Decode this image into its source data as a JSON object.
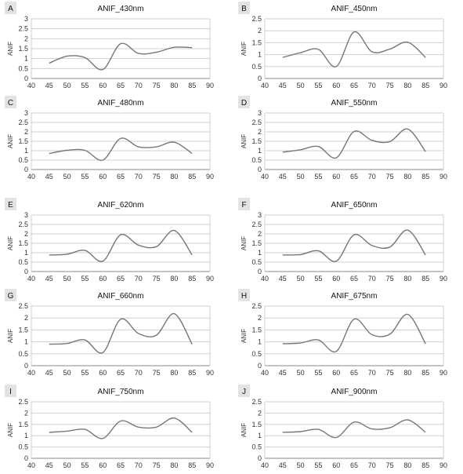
{
  "chart_data": [
    {
      "type": "line",
      "panel": "A",
      "title": "ANIF_430nm",
      "ylabel": "ANIF",
      "x": [
        45,
        50,
        55,
        60,
        65,
        70,
        75,
        80,
        85
      ],
      "values": [
        0.77,
        1.12,
        1.05,
        0.45,
        1.75,
        1.26,
        1.32,
        1.57,
        1.55
      ],
      "xlim": [
        40,
        90
      ],
      "ylim": [
        0,
        3
      ],
      "xticks": [
        "40",
        "45",
        "50",
        "55",
        "60",
        "65",
        "70",
        "75",
        "80",
        "85",
        "90"
      ],
      "yticks": [
        "0",
        "0.5",
        "1",
        "1.5",
        "2",
        "2.5",
        "3"
      ],
      "grid": true,
      "color": "#777777"
    },
    {
      "type": "line",
      "panel": "B",
      "title": "ANIF_450nm",
      "ylabel": "ANIF",
      "x": [
        45,
        50,
        55,
        60,
        65,
        70,
        75,
        80,
        85
      ],
      "values": [
        0.88,
        1.08,
        1.22,
        0.5,
        1.95,
        1.12,
        1.23,
        1.52,
        0.88
      ],
      "xlim": [
        40,
        90
      ],
      "ylim": [
        0,
        2.5
      ],
      "xticks": [
        "40",
        "45",
        "50",
        "55",
        "60",
        "65",
        "70",
        "75",
        "80",
        "85",
        "90"
      ],
      "yticks": [
        "0",
        "0.5",
        "1",
        "1.5",
        "2",
        "2.5"
      ],
      "grid": true,
      "color": "#777777"
    },
    {
      "type": "line",
      "panel": "C",
      "title": "ANIF_480nm",
      "ylabel": "ANIF",
      "x": [
        45,
        50,
        55,
        60,
        65,
        70,
        75,
        80,
        85
      ],
      "values": [
        0.85,
        1.02,
        1.02,
        0.5,
        1.65,
        1.2,
        1.2,
        1.45,
        0.85
      ],
      "xlim": [
        40,
        90
      ],
      "ylim": [
        0,
        3
      ],
      "xticks": [
        "40",
        "45",
        "50",
        "55",
        "60",
        "65",
        "70",
        "75",
        "80",
        "85",
        "90"
      ],
      "yticks": [
        "0",
        "0.5",
        "1",
        "1.5",
        "2",
        "2.5",
        "3"
      ],
      "grid": true,
      "color": "#777777"
    },
    {
      "type": "line",
      "panel": "D",
      "title": "ANIF_550nm",
      "ylabel": "ANIF",
      "x": [
        45,
        50,
        55,
        60,
        65,
        70,
        75,
        80,
        85
      ],
      "values": [
        0.92,
        1.05,
        1.22,
        0.62,
        2.02,
        1.55,
        1.48,
        2.15,
        0.95
      ],
      "xlim": [
        40,
        90
      ],
      "ylim": [
        0,
        3
      ],
      "xticks": [
        "40",
        "45",
        "50",
        "55",
        "60",
        "65",
        "70",
        "75",
        "80",
        "85",
        "90"
      ],
      "yticks": [
        "0",
        "0.5",
        "1",
        "1.5",
        "2",
        "2.5",
        "3"
      ],
      "grid": true,
      "color": "#777777"
    },
    {
      "type": "line",
      "panel": "E",
      "title": "ANIF_620nm",
      "ylabel": "ANIF",
      "x": [
        45,
        50,
        55,
        60,
        65,
        70,
        75,
        80,
        85
      ],
      "values": [
        0.88,
        0.92,
        1.12,
        0.55,
        1.95,
        1.4,
        1.32,
        2.18,
        0.88
      ],
      "xlim": [
        40,
        90
      ],
      "ylim": [
        0,
        3
      ],
      "xticks": [
        "40",
        "45",
        "50",
        "55",
        "60",
        "65",
        "70",
        "75",
        "80",
        "85",
        "90"
      ],
      "yticks": [
        "0",
        "0.5",
        "1",
        "1.5",
        "2",
        "2.5",
        "3"
      ],
      "grid": true,
      "color": "#777777"
    },
    {
      "type": "line",
      "panel": "F",
      "title": "ANIF_650nm",
      "ylabel": "ANIF",
      "x": [
        45,
        50,
        55,
        60,
        65,
        70,
        75,
        80,
        85
      ],
      "values": [
        0.88,
        0.9,
        1.1,
        0.55,
        1.95,
        1.38,
        1.3,
        2.2,
        0.88
      ],
      "xlim": [
        40,
        90
      ],
      "ylim": [
        0,
        3
      ],
      "xticks": [
        "40",
        "45",
        "50",
        "55",
        "60",
        "65",
        "70",
        "75",
        "80",
        "85",
        "90"
      ],
      "yticks": [
        "0",
        "0.5",
        "1",
        "1.5",
        "2",
        "2.5",
        "3"
      ],
      "grid": true,
      "color": "#777777"
    },
    {
      "type": "line",
      "panel": "G",
      "title": "ANIF_660nm",
      "ylabel": "ANIF",
      "x": [
        45,
        50,
        55,
        60,
        65,
        70,
        75,
        80,
        85
      ],
      "values": [
        0.9,
        0.93,
        1.08,
        0.55,
        1.95,
        1.35,
        1.28,
        2.18,
        0.9
      ],
      "xlim": [
        40,
        90
      ],
      "ylim": [
        0,
        2.5
      ],
      "xticks": [
        "40",
        "45",
        "50",
        "55",
        "60",
        "65",
        "70",
        "75",
        "80",
        "85",
        "90"
      ],
      "yticks": [
        "0",
        "0.5",
        "1",
        "1.5",
        "2",
        "2.5"
      ],
      "grid": true,
      "color": "#777777"
    },
    {
      "type": "line",
      "panel": "H",
      "title": "ANIF_675nm",
      "ylabel": "ANIF",
      "x": [
        45,
        50,
        55,
        60,
        65,
        70,
        75,
        80,
        85
      ],
      "values": [
        0.92,
        0.95,
        1.08,
        0.6,
        1.95,
        1.3,
        1.32,
        2.15,
        0.92
      ],
      "xlim": [
        40,
        90
      ],
      "ylim": [
        0,
        2.5
      ],
      "xticks": [
        "40",
        "45",
        "50",
        "55",
        "60",
        "65",
        "70",
        "75",
        "80",
        "85",
        "90"
      ],
      "yticks": [
        "0",
        "0.5",
        "1",
        "1.5",
        "2",
        "2.5"
      ],
      "grid": true,
      "color": "#777777"
    },
    {
      "type": "line",
      "panel": "I",
      "title": "ANIF_750nm",
      "ylabel": "ANIF",
      "x": [
        45,
        50,
        55,
        60,
        65,
        70,
        75,
        80,
        85
      ],
      "values": [
        1.15,
        1.2,
        1.28,
        0.88,
        1.65,
        1.38,
        1.38,
        1.78,
        1.15
      ],
      "xlim": [
        40,
        90
      ],
      "ylim": [
        0,
        2.5
      ],
      "xticks": [
        "40",
        "45",
        "50",
        "55",
        "60",
        "65",
        "70",
        "75",
        "80",
        "85",
        "90"
      ],
      "yticks": [
        "0",
        "0.5",
        "1",
        "1.5",
        "2",
        "2.5"
      ],
      "grid": true,
      "color": "#777777"
    },
    {
      "type": "line",
      "panel": "J",
      "title": "ANIF_900nm",
      "ylabel": "ANIF",
      "x": [
        45,
        50,
        55,
        60,
        65,
        70,
        75,
        80,
        85
      ],
      "values": [
        1.15,
        1.18,
        1.28,
        0.92,
        1.6,
        1.3,
        1.35,
        1.7,
        1.15
      ],
      "xlim": [
        40,
        90
      ],
      "ylim": [
        0,
        2.5
      ],
      "xticks": [
        "40",
        "45",
        "50",
        "55",
        "60",
        "65",
        "70",
        "75",
        "80",
        "85",
        "90"
      ],
      "yticks": [
        "0",
        "0.5",
        "1",
        "1.5",
        "2",
        "2.5"
      ],
      "grid": true,
      "color": "#777777"
    }
  ]
}
